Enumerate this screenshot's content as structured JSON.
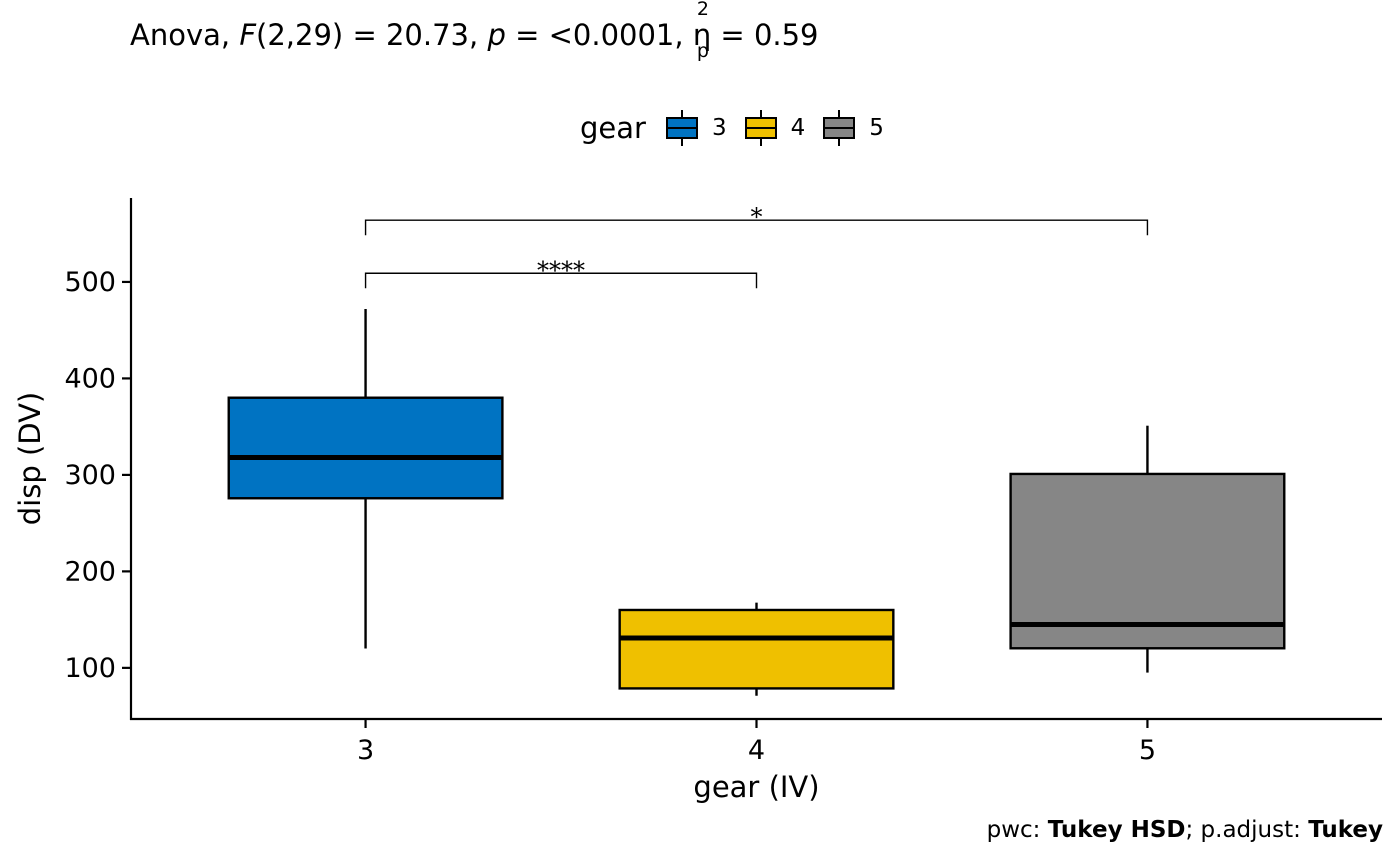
{
  "title": {
    "prefix": "Anova, ",
    "f_symbol": "F",
    "f_value": "(2,29) = 20.73, ",
    "p_symbol": "p",
    "p_value": " = <0.0001, ",
    "eta_symbol": "η",
    "eta_sup": "2",
    "eta_sub": "p",
    "eta_value": " = 0.59"
  },
  "legend": {
    "title": "gear",
    "items": [
      {
        "label": "3",
        "color": "#0073C2"
      },
      {
        "label": "4",
        "color": "#EFC000"
      },
      {
        "label": "5",
        "color": "#868686"
      }
    ]
  },
  "caption": {
    "pwc_label": "pwc: ",
    "pwc_value": "Tukey HSD",
    "sep": "; p.adjust: ",
    "adjust_value": "Tukey"
  },
  "chart_data": {
    "type": "box",
    "xlabel": "gear (IV)",
    "ylabel": "disp (DV)",
    "ylim": [
      47,
      587
    ],
    "yticks": [
      100,
      200,
      300,
      400,
      500
    ],
    "categories": [
      "3",
      "4",
      "5"
    ],
    "series": [
      {
        "category": "3",
        "color": "#0073C2",
        "whisker_low": 120.1,
        "q1": 275.8,
        "median": 318.0,
        "q3": 380.0,
        "whisker_high": 472.0
      },
      {
        "category": "4",
        "color": "#EFC000",
        "whisker_low": 71.1,
        "q1": 78.7,
        "median": 130.9,
        "q3": 160.0,
        "whisker_high": 167.6
      },
      {
        "category": "5",
        "color": "#868686",
        "whisker_low": 95.1,
        "q1": 120.3,
        "median": 145.0,
        "q3": 301.0,
        "whisker_high": 351.0
      }
    ],
    "comparisons": [
      {
        "from": "3",
        "to": "4",
        "y": 509,
        "label": "****"
      },
      {
        "from": "3",
        "to": "5",
        "y": 564,
        "label": "*"
      }
    ],
    "grid": false,
    "legend_position": "top"
  }
}
